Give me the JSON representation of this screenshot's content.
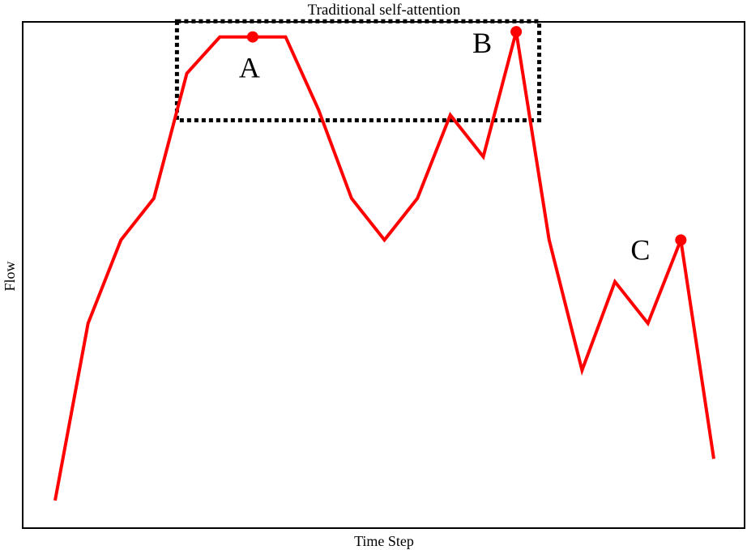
{
  "chart_data": {
    "type": "line",
    "title": "Traditional self-attention",
    "xlabel": "Time Step",
    "ylabel": "Flow",
    "xlim": [
      0,
      20
    ],
    "ylim": [
      0,
      100
    ],
    "grid": false,
    "ticks_shown": false,
    "series": [
      {
        "color": "#ff0000",
        "x": [
          0,
          1,
          2,
          3,
          4,
          5,
          6,
          7,
          8,
          9,
          10,
          11,
          12,
          13,
          14,
          15,
          16,
          17,
          18,
          19,
          20
        ],
        "y": [
          5,
          39,
          55,
          63,
          87,
          94,
          94,
          94,
          80,
          63,
          55,
          63,
          79,
          71,
          95,
          55,
          30,
          47,
          39,
          55,
          13
        ]
      }
    ],
    "annotations": [
      {
        "label": "A",
        "x": 6,
        "y": 94
      },
      {
        "label": "B",
        "x": 14,
        "y": 95
      },
      {
        "label": "C",
        "x": 19,
        "y": 55
      }
    ],
    "highlight_box": {
      "style": "dotted",
      "color": "#000000",
      "x_range": [
        3.7,
        14.7
      ],
      "y_range": [
        78,
        97
      ]
    }
  }
}
